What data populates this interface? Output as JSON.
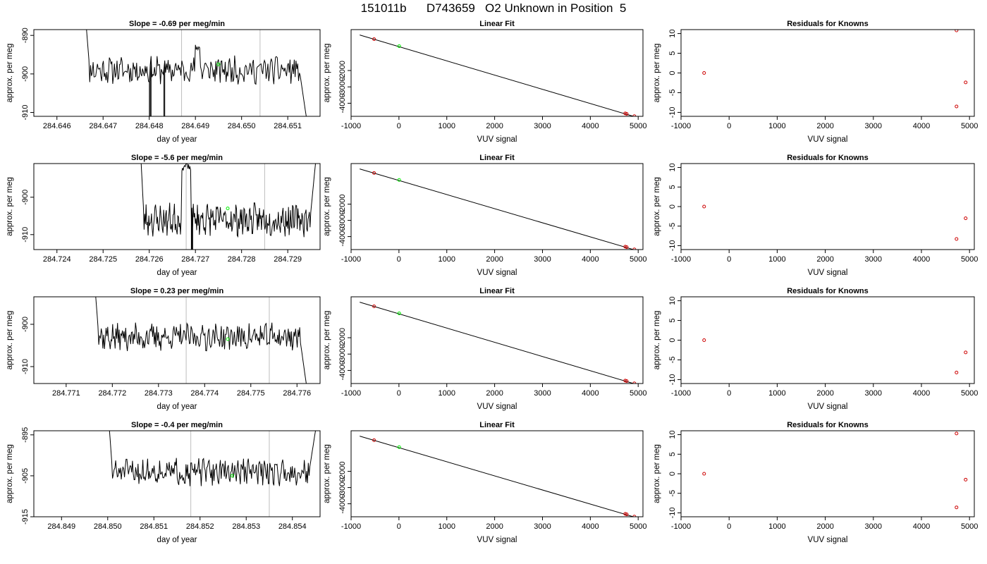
{
  "main_title": "151011b      D743659   O2 Unknown in Position  5",
  "colors": {
    "trace": "#000000",
    "marker_lines": "#bebebe",
    "known_points": "#cd0000",
    "unknown_point": "#00ee00",
    "fit_line": "#000000"
  },
  "chart_data": [
    {
      "row": 1,
      "panel": "time-series",
      "type": "line",
      "title": "Slope =  -0.69  per meg/min",
      "xlabel": "day of year",
      "ylabel": "approx. per meg",
      "xlim": [
        284.6455,
        284.6517
      ],
      "ylim": [
        -911,
        -888.5
      ],
      "y_reversed": true,
      "xticks": [
        "284.646",
        "284.647",
        "284.648",
        "284.649",
        "284.650",
        "284.651"
      ],
      "yticks": [
        "-890",
        "-900",
        "-910"
      ],
      "markers_x": [
        284.6487,
        284.6504
      ],
      "unknown_point": {
        "x": 284.6495,
        "y": -897.5
      },
      "trace": {
        "x_start": 284.6466,
        "x_end": 284.6514,
        "seed": 11,
        "base": -899,
        "noise": 1.6,
        "dips": [
          [
            284.648,
            284.64805
          ],
          [
            284.6483,
            284.64835
          ]
        ],
        "bump": [
          284.649,
          284.6491,
          -893
        ],
        "tail_end": -911
      }
    },
    {
      "row": 1,
      "panel": "linear-fit",
      "type": "scatter",
      "title": "Linear Fit",
      "xlabel": "VUV signal",
      "ylabel": "approx. per meg",
      "xlim": [
        -1000,
        5100
      ],
      "ylim": [
        -4800,
        500
      ],
      "xticks": [
        "-1000",
        "0",
        "1000",
        "2000",
        "3000",
        "4000",
        "5000"
      ],
      "yticks": [
        "-2000",
        "-3000",
        "-4000"
      ],
      "fit_line": {
        "x1": -820,
        "y1": 170,
        "x2": 4900,
        "y2": -4800
      },
      "known_points": [
        [
          -520,
          -80
        ],
        [
          4730,
          -4620
        ],
        [
          4760,
          -4650
        ],
        [
          4920,
          -4790
        ]
      ],
      "unknown_point": [
        5,
        -510
      ]
    },
    {
      "row": 1,
      "panel": "residuals",
      "type": "scatter",
      "title": "Residuals for Knowns",
      "xlabel": "VUV signal",
      "ylabel": "approx. per meg",
      "xlim": [
        -1000,
        5100
      ],
      "ylim": [
        -11,
        11
      ],
      "xticks": [
        "-1000",
        "0",
        "1000",
        "2000",
        "3000",
        "4000",
        "5000"
      ],
      "yticks": [
        "-10",
        "-5",
        "0",
        "5",
        "10"
      ],
      "points": [
        [
          -520,
          0
        ],
        [
          4730,
          10.8
        ],
        [
          4730,
          -8.5
        ],
        [
          4920,
          -2.4
        ]
      ]
    },
    {
      "row": 2,
      "panel": "time-series",
      "type": "line",
      "title": "Slope =  -5.6  per meg/min",
      "xlabel": "day of year",
      "ylabel": "approx. per meg",
      "xlim": [
        284.7235,
        284.7297
      ],
      "ylim": [
        -914,
        -891
      ],
      "y_reversed": true,
      "xticks": [
        "284.724",
        "284.725",
        "284.726",
        "284.727",
        "284.728",
        "284.729"
      ],
      "yticks": [
        "-900",
        "-910"
      ],
      "markers_x": [
        284.7268,
        284.7285
      ],
      "unknown_point": {
        "x": 284.7277,
        "y": -903
      },
      "trace": {
        "x_start": 284.7258,
        "x_end": 284.7296,
        "seed": 23,
        "base": -906,
        "noise": 2.0,
        "dips": [
          [
            284.7269,
            284.72695
          ]
        ],
        "bump": [
          284.7267,
          284.7269,
          -892
        ],
        "tail_end": -891
      }
    },
    {
      "row": 2,
      "panel": "linear-fit",
      "type": "scatter",
      "title": "Linear Fit",
      "xlabel": "VUV signal",
      "ylabel": "approx. per meg",
      "xlim": [
        -1000,
        5100
      ],
      "ylim": [
        -4800,
        500
      ],
      "xticks": [
        "-1000",
        "0",
        "1000",
        "2000",
        "3000",
        "4000",
        "5000"
      ],
      "yticks": [
        "-2000",
        "-3000",
        "-4000"
      ],
      "fit_line": {
        "x1": -820,
        "y1": 170,
        "x2": 4900,
        "y2": -4800
      },
      "known_points": [
        [
          -520,
          -80
        ],
        [
          4730,
          -4620
        ],
        [
          4760,
          -4650
        ],
        [
          4920,
          -4790
        ]
      ],
      "unknown_point": [
        5,
        -510
      ]
    },
    {
      "row": 2,
      "panel": "residuals",
      "type": "scatter",
      "title": "Residuals for Knowns",
      "xlabel": "VUV signal",
      "ylabel": "approx. per meg",
      "xlim": [
        -1000,
        5100
      ],
      "ylim": [
        -11,
        11
      ],
      "xticks": [
        "-1000",
        "0",
        "1000",
        "2000",
        "3000",
        "4000",
        "5000"
      ],
      "yticks": [
        "-10",
        "-5",
        "0",
        "5",
        "10"
      ],
      "points": [
        [
          -520,
          0
        ],
        [
          4730,
          -8.3
        ],
        [
          4920,
          -3.0
        ]
      ]
    },
    {
      "row": 3,
      "panel": "time-series",
      "type": "line",
      "title": "Slope =  0.23  per meg/min",
      "xlabel": "day of year",
      "ylabel": "approx. per meg",
      "xlim": [
        284.7703,
        284.7765
      ],
      "ylim": [
        -914,
        -893.5
      ],
      "y_reversed": true,
      "xticks": [
        "284.771",
        "284.772",
        "284.773",
        "284.774",
        "284.775",
        "284.776"
      ],
      "yticks": [
        "-900",
        "-910"
      ],
      "markers_x": [
        284.7736,
        284.7754
      ],
      "unknown_point": {
        "x": 284.7745,
        "y": -903.5
      },
      "trace": {
        "x_start": 284.7716,
        "x_end": 284.7762,
        "seed": 37,
        "base": -903,
        "noise": 1.5,
        "dips": [],
        "bump": null,
        "tail_end": -914
      }
    },
    {
      "row": 3,
      "panel": "linear-fit",
      "type": "scatter",
      "title": "Linear Fit",
      "xlabel": "VUV signal",
      "ylabel": "approx. per meg",
      "xlim": [
        -1000,
        5100
      ],
      "ylim": [
        -4800,
        500
      ],
      "xticks": [
        "-1000",
        "0",
        "1000",
        "2000",
        "3000",
        "4000",
        "5000"
      ],
      "yticks": [
        "-2000",
        "-3000",
        "-4000"
      ],
      "fit_line": {
        "x1": -820,
        "y1": 170,
        "x2": 4900,
        "y2": -4800
      },
      "known_points": [
        [
          -520,
          -80
        ],
        [
          4730,
          -4620
        ],
        [
          4760,
          -4650
        ],
        [
          4920,
          -4790
        ]
      ],
      "unknown_point": [
        5,
        -510
      ]
    },
    {
      "row": 3,
      "panel": "residuals",
      "type": "scatter",
      "title": "Residuals for Knowns",
      "xlabel": "VUV signal",
      "ylabel": "approx. per meg",
      "xlim": [
        -1000,
        5100
      ],
      "ylim": [
        -11,
        11
      ],
      "xticks": [
        "-1000",
        "0",
        "1000",
        "2000",
        "3000",
        "4000",
        "5000"
      ],
      "yticks": [
        "-10",
        "-5",
        "0",
        "5",
        "10"
      ],
      "points": [
        [
          -520,
          0
        ],
        [
          4730,
          -8.2
        ],
        [
          4920,
          -3.1
        ]
      ]
    },
    {
      "row": 4,
      "panel": "time-series",
      "type": "line",
      "title": "Slope =  -0.4  per meg/min",
      "xlabel": "day of year",
      "ylabel": "approx. per meg",
      "xlim": [
        284.8484,
        284.8546
      ],
      "ylim": [
        -915,
        -894
      ],
      "y_reversed": true,
      "xticks": [
        "284.849",
        "284.850",
        "284.851",
        "284.852",
        "284.853",
        "284.854"
      ],
      "yticks": [
        "-895",
        "-905",
        "-915"
      ],
      "markers_x": [
        284.8518,
        284.8535
      ],
      "unknown_point": {
        "x": 284.8527,
        "y": -905
      },
      "trace": {
        "x_start": 284.85,
        "x_end": 284.8545,
        "seed": 51,
        "base": -904,
        "noise": 1.5,
        "dips": [],
        "bump": null,
        "tail_end": -894
      }
    },
    {
      "row": 4,
      "panel": "linear-fit",
      "type": "scatter",
      "title": "Linear Fit",
      "xlabel": "VUV signal",
      "ylabel": "approx. per meg",
      "xlim": [
        -1000,
        5100
      ],
      "ylim": [
        -4800,
        500
      ],
      "xticks": [
        "-1000",
        "0",
        "1000",
        "2000",
        "3000",
        "4000",
        "5000"
      ],
      "yticks": [
        "-2000",
        "-3000",
        "-4000"
      ],
      "fit_line": {
        "x1": -820,
        "y1": 170,
        "x2": 4900,
        "y2": -4800
      },
      "known_points": [
        [
          -520,
          -80
        ],
        [
          4730,
          -4620
        ],
        [
          4760,
          -4650
        ],
        [
          4920,
          -4790
        ]
      ],
      "unknown_point": [
        5,
        -510
      ]
    },
    {
      "row": 4,
      "panel": "residuals",
      "type": "scatter",
      "title": "Residuals for Knowns",
      "xlabel": "VUV signal",
      "ylabel": "approx. per meg",
      "xlim": [
        -1000,
        5100
      ],
      "ylim": [
        -11,
        11
      ],
      "xticks": [
        "-1000",
        "0",
        "1000",
        "2000",
        "3000",
        "4000",
        "5000"
      ],
      "yticks": [
        "-10",
        "-5",
        "0",
        "5",
        "10"
      ],
      "points": [
        [
          -520,
          0
        ],
        [
          4730,
          10.3
        ],
        [
          4730,
          -8.6
        ],
        [
          4920,
          -1.5
        ]
      ]
    }
  ]
}
